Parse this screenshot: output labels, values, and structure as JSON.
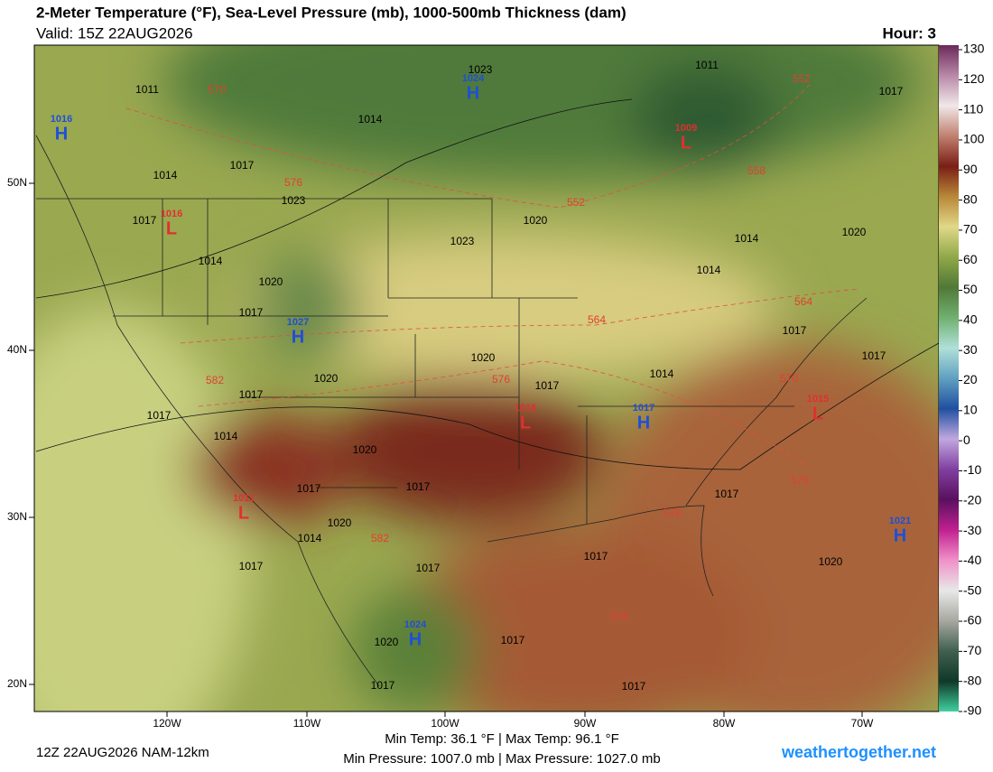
{
  "header": {
    "title": "2-Meter Temperature (°F), Sea-Level Pressure (mb), 1000-500mb Thickness (dam)",
    "valid": "Valid: 15Z 22AUG2026",
    "hour": "Hour: 3"
  },
  "colorbar": {
    "ticks": [
      130,
      120,
      110,
      100,
      90,
      80,
      70,
      60,
      50,
      40,
      30,
      20,
      10,
      0,
      -10,
      -20,
      -30,
      -40,
      -50,
      -60,
      -70,
      -80,
      -90
    ],
    "colors": [
      "#6a2a5a",
      "#b888a8",
      "#f0e8e8",
      "#c08070",
      "#7a1e14",
      "#b88838",
      "#e0d888",
      "#90a848",
      "#507838",
      "#70b070",
      "#b0e0d8",
      "#60a0c0",
      "#2050a0",
      "#c0a8e0",
      "#8040a0",
      "#5a1060",
      "#c02090",
      "#f090c8",
      "#e8e8e8",
      "#a8a8a0",
      "#406050",
      "#103828",
      "#40d0a0"
    ]
  },
  "map": {
    "lat_labels": [
      "50N",
      "40N",
      "30N",
      "20N"
    ],
    "lon_labels": [
      "120W",
      "110W",
      "100W",
      "90W",
      "80W",
      "70W"
    ],
    "high_color": "#1f4fd6",
    "low_color": "#e03030",
    "centers": [
      {
        "type": "H",
        "value": "1016"
      },
      {
        "type": "H",
        "value": "1024"
      },
      {
        "type": "L",
        "value": "1009"
      },
      {
        "type": "L",
        "value": "1016"
      },
      {
        "type": "H",
        "value": "1027"
      },
      {
        "type": "L",
        "value": "1016"
      },
      {
        "type": "H",
        "value": "1017"
      },
      {
        "type": "L",
        "value": "1015"
      },
      {
        "type": "L",
        "value": "1011"
      },
      {
        "type": "H",
        "value": "1021"
      },
      {
        "type": "H",
        "value": "1024"
      }
    ],
    "isobar_labels": [
      "1011",
      "1023",
      "1011",
      "1017",
      "1014",
      "1014",
      "1017",
      "1023",
      "1020",
      "1017",
      "1023",
      "1014",
      "1020",
      "1014",
      "1017",
      "1020",
      "1017",
      "1020",
      "1017",
      "1017",
      "1020",
      "1017",
      "1017",
      "1017",
      "1014",
      "1017",
      "1017",
      "1020",
      "1014",
      "1017",
      "1014",
      "1020",
      "1020",
      "1017",
      "1017",
      "1017",
      "1020",
      "1017",
      "1017",
      "1014"
    ],
    "thickness_labels": [
      "570",
      "576",
      "552",
      "558",
      "564",
      "564",
      "570",
      "582",
      "576",
      "576",
      "582",
      "576",
      "576",
      "552"
    ]
  },
  "footer": {
    "run": "12Z 22AUG2026 NAM-12km",
    "temps": "Min Temp:  36.1 °F | Max Temp:  96.1 °F",
    "pressures": "Min Pressure: 1007.0 mb | Max Pressure: 1027.0 mb",
    "site": "weathertogether.net"
  }
}
